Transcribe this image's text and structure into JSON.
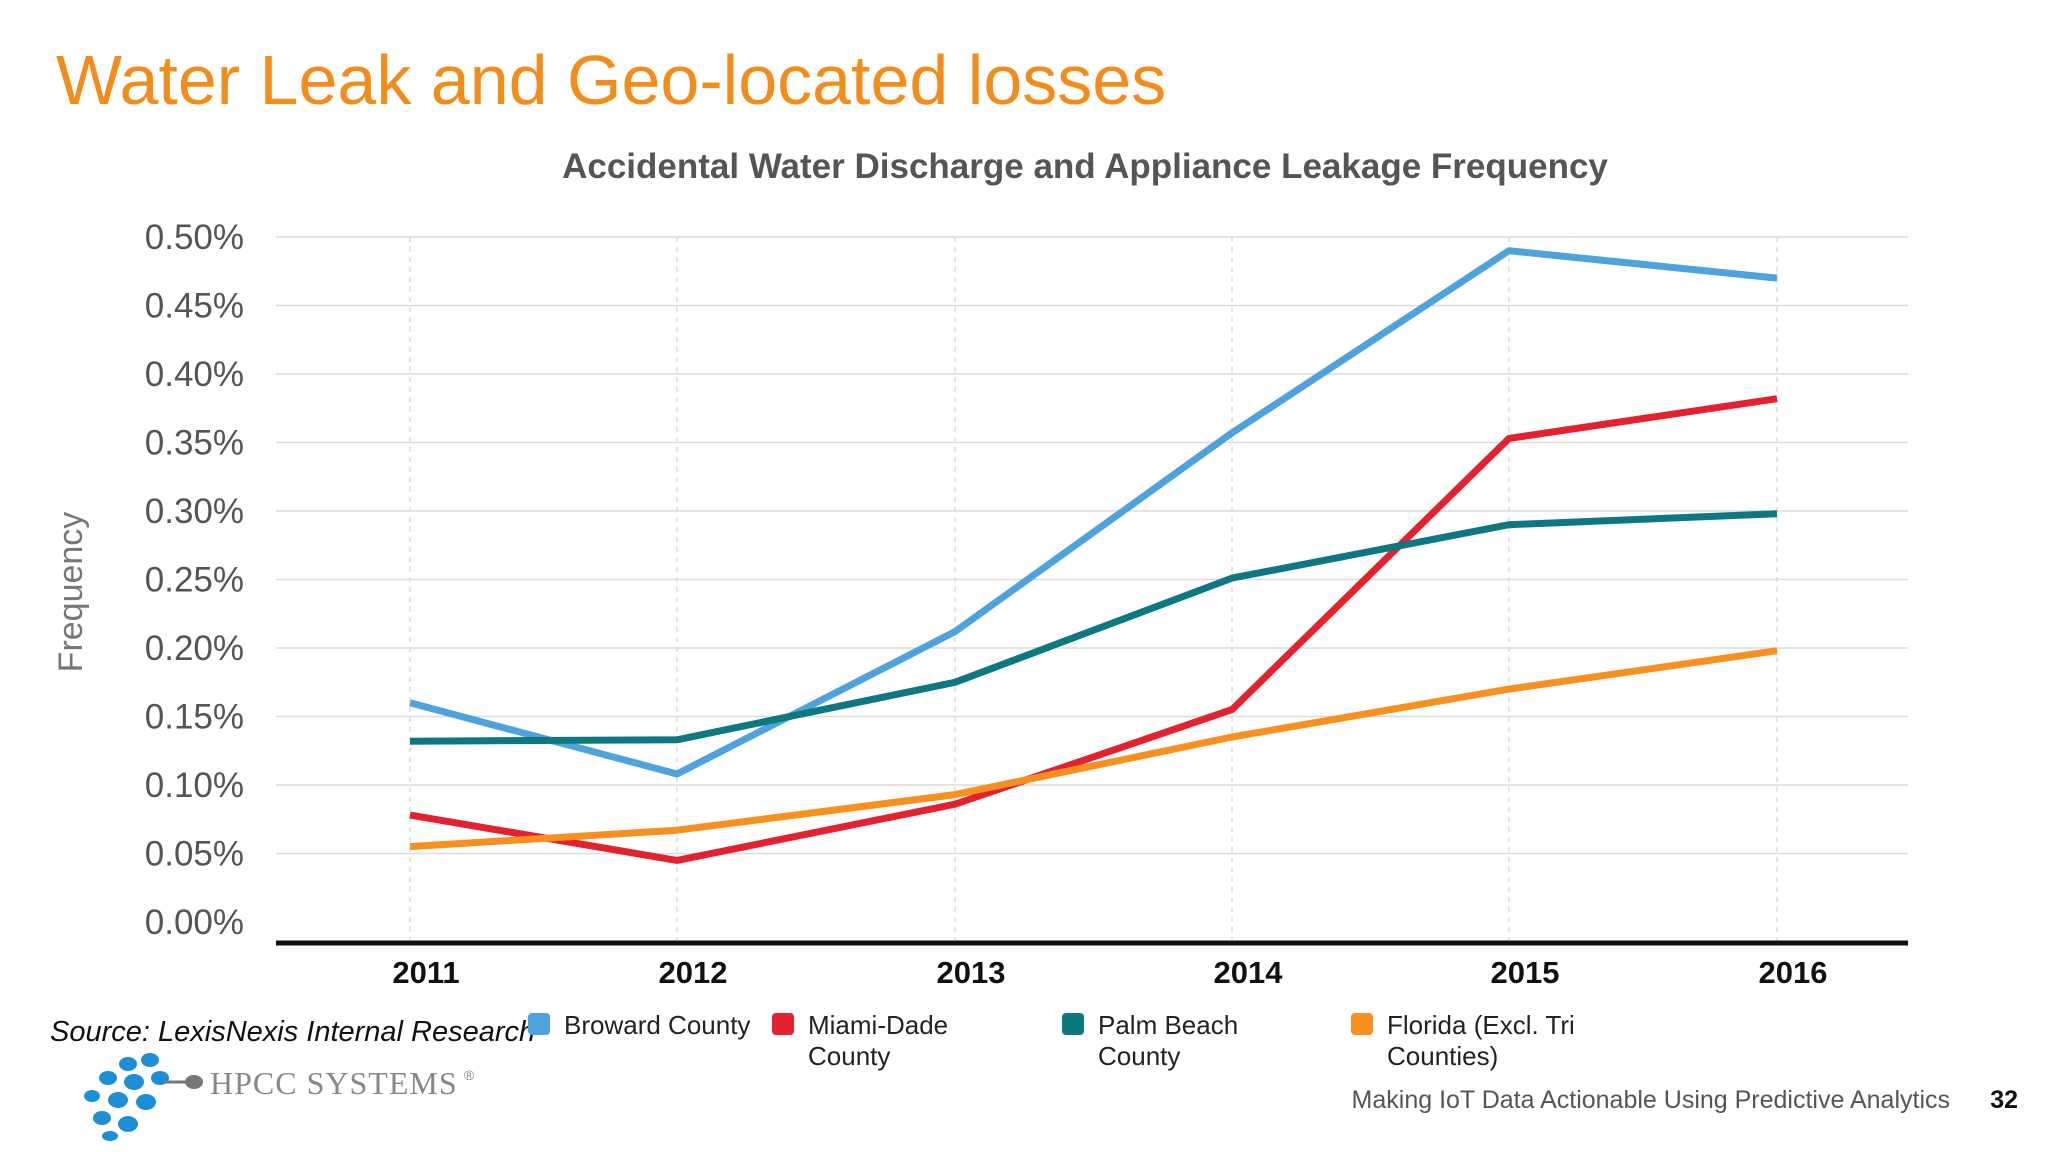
{
  "slide": {
    "title": "Water Leak and Geo-located losses",
    "source": "Source: LexisNexis Internal Research",
    "footer": "Making IoT Data Actionable Using Predictive Analytics",
    "page_number": "32",
    "logo_text": "HPCC SYSTEMS",
    "logo_mark": "®"
  },
  "colors": {
    "title": "#f28c1b",
    "broward": "#4fa3dd",
    "miami": "#e3212f",
    "palm": "#0e7880",
    "florida": "#f7901e",
    "logo": "#1e8fd6"
  },
  "chart_data": {
    "type": "line",
    "title": "Accidental Water Discharge and Appliance Leakage Frequency",
    "xlabel": "",
    "ylabel": "Frequency",
    "categories": [
      "2011",
      "2012",
      "2013",
      "2014",
      "2015",
      "2016"
    ],
    "ylim": [
      0,
      0.5
    ],
    "yticks": [
      "0.00%",
      "0.05%",
      "0.10%",
      "0.15%",
      "0.20%",
      "0.25%",
      "0.30%",
      "0.35%",
      "0.40%",
      "0.45%",
      "0.50%"
    ],
    "grid": true,
    "legend_position": "bottom",
    "series": [
      {
        "name": "Broward County",
        "color": "#4fa3dd",
        "values": [
          0.16,
          0.108,
          0.212,
          0.357,
          0.49,
          0.47
        ]
      },
      {
        "name": "Miami-Dade County",
        "color": "#e3212f",
        "values": [
          0.078,
          0.045,
          0.086,
          0.155,
          0.353,
          0.382
        ]
      },
      {
        "name": "Palm Beach County",
        "color": "#0e7880",
        "values": [
          0.132,
          0.133,
          0.175,
          0.251,
          0.29,
          0.298
        ]
      },
      {
        "name": "Florida (Excl. Tri Counties)",
        "color": "#f7901e",
        "values": [
          0.055,
          0.067,
          0.093,
          0.135,
          0.17,
          0.198
        ]
      }
    ]
  }
}
